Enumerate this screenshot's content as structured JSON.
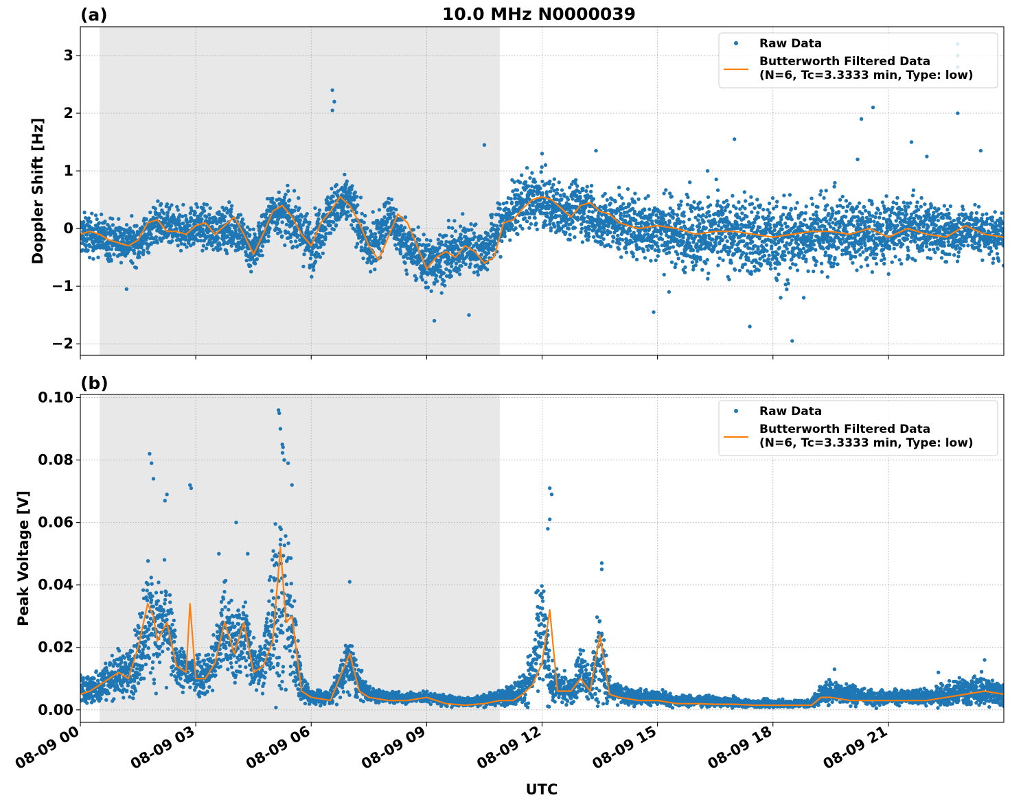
{
  "figure": {
    "suptitle": "10.0 MHz N0000039",
    "xlabel": "UTC",
    "xticks": [
      "08-09 00",
      "08-09 03",
      "08-09 06",
      "08-09 09",
      "08-09 12",
      "08-09 15",
      "08-09 18",
      "08-09 21"
    ]
  },
  "colors": {
    "raw": "#1f77b4",
    "filtered": "#ff7f0e",
    "shade": "#e8e8e8"
  },
  "chart_data": [
    {
      "type": "scatter",
      "panel_label": "(a)",
      "title": "10.0 MHz N0000039",
      "xlabel": "UTC",
      "ylabel": "Doppler Shift [Hz]",
      "x_unit": "hours since 08-09 00 UTC",
      "xlim": [
        0,
        24
      ],
      "ylim": [
        -2.2,
        3.5
      ],
      "yticks": [
        -2,
        -1,
        0,
        1,
        2,
        3
      ],
      "ytick_labels": [
        "−2",
        "−1",
        "0",
        "1",
        "2",
        "3"
      ],
      "grid": true,
      "legend_position": "top-right",
      "shaded_span_hours": [
        0.5,
        10.9
      ],
      "series": [
        {
          "name": "Raw Data",
          "style": "points",
          "x": [
            0,
            0.5,
            1,
            1.5,
            2,
            2.5,
            3,
            3.5,
            4,
            4.5,
            5,
            5.5,
            6,
            6.5,
            7,
            7.5,
            8,
            8.5,
            9,
            9.5,
            10,
            10.5,
            11,
            11.5,
            12,
            12.5,
            13,
            13.5,
            14,
            14.5,
            15,
            15.5,
            16,
            16.5,
            17,
            17.5,
            18,
            18.5,
            19,
            19.5,
            20,
            20.5,
            21,
            21.5,
            22,
            22.5,
            23,
            23.5,
            24
          ],
          "center": [
            -0.1,
            -0.15,
            -0.2,
            -0.25,
            0.1,
            -0.05,
            0.05,
            -0.05,
            0.05,
            -0.4,
            0.3,
            0.15,
            -0.3,
            0.3,
            0.5,
            -0.4,
            0.2,
            -0.3,
            -0.6,
            -0.5,
            -0.3,
            -0.4,
            0.1,
            0.5,
            0.45,
            0.3,
            0.4,
            0.1,
            0.1,
            0.0,
            0.0,
            -0.05,
            -0.1,
            -0.1,
            -0.1,
            -0.15,
            -0.2,
            -0.2,
            -0.05,
            -0.1,
            0.0,
            -0.1,
            -0.05,
            0.0,
            0.0,
            -0.1,
            0.0,
            -0.1,
            -0.15
          ],
          "spread": [
            0.3,
            0.3,
            0.3,
            0.3,
            0.3,
            0.3,
            0.3,
            0.3,
            0.35,
            0.35,
            0.3,
            0.35,
            0.4,
            0.35,
            0.35,
            0.35,
            0.35,
            0.35,
            0.4,
            0.4,
            0.35,
            0.35,
            0.4,
            0.4,
            0.4,
            0.4,
            0.4,
            0.4,
            0.45,
            0.45,
            0.5,
            0.5,
            0.55,
            0.55,
            0.55,
            0.6,
            0.6,
            0.6,
            0.5,
            0.55,
            0.5,
            0.5,
            0.5,
            0.45,
            0.4,
            0.4,
            0.35,
            0.35,
            0.35
          ],
          "outliers": [
            [
              1.2,
              -1.05
            ],
            [
              6.55,
              2.4
            ],
            [
              6.55,
              2.05
            ],
            [
              6.6,
              2.2
            ],
            [
              5.4,
              0.65
            ],
            [
              9.2,
              -1.6
            ],
            [
              10.1,
              -1.5
            ],
            [
              10.5,
              1.45
            ],
            [
              12.0,
              1.3
            ],
            [
              13.4,
              1.35
            ],
            [
              16.3,
              1.0
            ],
            [
              17.0,
              1.55
            ],
            [
              17.4,
              -1.7
            ],
            [
              18.5,
              -1.95
            ],
            [
              18.8,
              -1.2
            ],
            [
              20.3,
              1.9
            ],
            [
              20.6,
              2.1
            ],
            [
              21.6,
              1.5
            ],
            [
              22.0,
              1.25
            ],
            [
              22.8,
              3.2
            ],
            [
              22.8,
              3.0
            ],
            [
              22.8,
              2.0
            ],
            [
              22.8,
              2.8
            ],
            [
              23.4,
              1.35
            ],
            [
              14.9,
              -1.45
            ],
            [
              15.3,
              -1.1
            ],
            [
              20.2,
              1.2
            ],
            [
              18.2,
              -1.2
            ]
          ]
        },
        {
          "name": "Butterworth Filtered Data\n(N=6, Tc=3.3333 min, Type: low)",
          "style": "line",
          "x": [
            0,
            0.25,
            0.5,
            0.75,
            1,
            1.25,
            1.5,
            1.75,
            2,
            2.25,
            2.5,
            2.75,
            3,
            3.25,
            3.5,
            3.75,
            4,
            4.25,
            4.5,
            4.75,
            5,
            5.25,
            5.5,
            5.75,
            6,
            6.25,
            6.5,
            6.75,
            7,
            7.25,
            7.5,
            7.75,
            8,
            8.25,
            8.5,
            8.75,
            9,
            9.25,
            9.5,
            9.75,
            10,
            10.25,
            10.5,
            10.75,
            11,
            11.25,
            11.5,
            11.75,
            12,
            12.25,
            12.5,
            12.75,
            13,
            13.25,
            13.5,
            13.75,
            14,
            14.5,
            15,
            15.5,
            16,
            16.5,
            17,
            17.5,
            18,
            18.5,
            19,
            19.5,
            20,
            20.5,
            21,
            21.5,
            22,
            22.5,
            23,
            23.5,
            24
          ],
          "y": [
            -0.1,
            -0.05,
            -0.1,
            -0.2,
            -0.25,
            -0.3,
            -0.2,
            0.1,
            0.15,
            -0.05,
            -0.05,
            -0.1,
            0.05,
            0.1,
            -0.1,
            0.05,
            0.2,
            -0.1,
            -0.45,
            -0.1,
            0.3,
            0.4,
            0.2,
            -0.1,
            -0.3,
            0.1,
            0.3,
            0.55,
            0.4,
            0.1,
            -0.3,
            -0.55,
            -0.15,
            0.25,
            0.1,
            -0.3,
            -0.7,
            -0.5,
            -0.4,
            -0.5,
            -0.3,
            -0.4,
            -0.6,
            -0.5,
            0.1,
            0.15,
            0.35,
            0.5,
            0.55,
            0.5,
            0.35,
            0.2,
            0.4,
            0.45,
            0.3,
            0.25,
            0.1,
            0.0,
            0.05,
            0.0,
            -0.1,
            -0.05,
            -0.05,
            -0.1,
            -0.15,
            -0.1,
            -0.05,
            -0.05,
            -0.1,
            0.0,
            -0.15,
            0.0,
            -0.1,
            -0.15,
            0.05,
            -0.1,
            -0.15
          ]
        }
      ]
    },
    {
      "type": "scatter",
      "panel_label": "(b)",
      "xlabel": "UTC",
      "ylabel": "Peak Voltage [V]",
      "x_unit": "hours since 08-09 00 UTC",
      "xlim": [
        0,
        24
      ],
      "ylim": [
        -0.004,
        0.101
      ],
      "yticks": [
        0.0,
        0.02,
        0.04,
        0.06,
        0.08,
        0.1
      ],
      "ytick_labels": [
        "0.00",
        "0.02",
        "0.04",
        "0.06",
        "0.08",
        "0.10"
      ],
      "grid": true,
      "legend_position": "top-right",
      "shaded_span_hours": [
        0.5,
        10.9
      ],
      "series": [
        {
          "name": "Raw Data",
          "style": "points",
          "x": [
            0,
            0.25,
            0.5,
            0.75,
            1,
            1.25,
            1.5,
            1.75,
            2,
            2.25,
            2.5,
            2.75,
            3,
            3.25,
            3.5,
            3.75,
            4,
            4.25,
            4.5,
            4.75,
            5,
            5.25,
            5.5,
            5.75,
            6,
            6.5,
            7,
            7.25,
            7.5,
            8,
            8.5,
            9,
            9.5,
            10,
            10.5,
            10.9,
            11.25,
            11.5,
            11.75,
            12,
            12.25,
            12.5,
            12.75,
            13,
            13.25,
            13.5,
            13.75,
            14,
            14.5,
            15,
            15.5,
            16,
            16.5,
            17,
            17.5,
            18,
            18.5,
            19,
            19.25,
            19.5,
            20,
            20.5,
            21,
            21.5,
            22,
            22.5,
            23,
            23.5,
            24
          ],
          "center": [
            0.007,
            0.006,
            0.008,
            0.01,
            0.012,
            0.011,
            0.018,
            0.03,
            0.025,
            0.028,
            0.015,
            0.012,
            0.012,
            0.011,
            0.016,
            0.028,
            0.02,
            0.025,
            0.015,
            0.015,
            0.03,
            0.038,
            0.025,
            0.008,
            0.004,
            0.004,
            0.015,
            0.008,
            0.005,
            0.004,
            0.004,
            0.004,
            0.003,
            0.0025,
            0.003,
            0.004,
            0.005,
            0.007,
            0.012,
            0.025,
            0.008,
            0.007,
            0.006,
            0.012,
            0.008,
            0.018,
            0.006,
            0.005,
            0.004,
            0.004,
            0.003,
            0.003,
            0.0025,
            0.0025,
            0.002,
            0.002,
            0.002,
            0.002,
            0.005,
            0.006,
            0.005,
            0.004,
            0.004,
            0.004,
            0.004,
            0.005,
            0.006,
            0.006,
            0.005
          ],
          "spread": [
            0.004,
            0.004,
            0.005,
            0.005,
            0.006,
            0.006,
            0.01,
            0.016,
            0.012,
            0.014,
            0.006,
            0.006,
            0.006,
            0.006,
            0.008,
            0.012,
            0.01,
            0.012,
            0.007,
            0.007,
            0.02,
            0.03,
            0.018,
            0.004,
            0.002,
            0.002,
            0.008,
            0.004,
            0.002,
            0.0015,
            0.0015,
            0.0015,
            0.0015,
            0.0012,
            0.0015,
            0.002,
            0.003,
            0.004,
            0.008,
            0.018,
            0.005,
            0.004,
            0.003,
            0.008,
            0.005,
            0.014,
            0.003,
            0.003,
            0.002,
            0.002,
            0.0015,
            0.0015,
            0.0012,
            0.0012,
            0.001,
            0.001,
            0.001,
            0.001,
            0.003,
            0.003,
            0.003,
            0.002,
            0.002,
            0.002,
            0.002,
            0.003,
            0.004,
            0.004,
            0.003
          ],
          "outliers": [
            [
              1.8,
              0.082
            ],
            [
              1.85,
              0.079
            ],
            [
              1.9,
              0.074
            ],
            [
              2.25,
              0.069
            ],
            [
              2.2,
              0.067
            ],
            [
              2.85,
              0.072
            ],
            [
              2.88,
              0.071
            ],
            [
              3.6,
              0.05
            ],
            [
              4.05,
              0.06
            ],
            [
              4.35,
              0.05
            ],
            [
              5.15,
              0.096
            ],
            [
              5.17,
              0.095
            ],
            [
              5.2,
              0.09
            ],
            [
              5.25,
              0.085
            ],
            [
              5.3,
              0.08
            ],
            [
              5.4,
              0.079
            ],
            [
              5.5,
              0.072
            ],
            [
              7.0,
              0.041
            ],
            [
              12.2,
              0.071
            ],
            [
              12.25,
              0.069
            ],
            [
              12.2,
              0.061
            ],
            [
              12.15,
              0.058
            ],
            [
              13.55,
              0.047
            ],
            [
              13.55,
              0.045
            ],
            [
              19.6,
              0.013
            ],
            [
              22.3,
              0.012
            ],
            [
              23.5,
              0.016
            ]
          ]
        },
        {
          "name": "Butterworth Filtered Data\n(N=6, Tc=3.3333 min, Type: low)",
          "style": "line",
          "x": [
            0,
            0.25,
            0.5,
            0.75,
            1,
            1.25,
            1.5,
            1.75,
            1.9,
            2.0,
            2.25,
            2.5,
            2.75,
            2.85,
            3.0,
            3.25,
            3.5,
            3.75,
            4.0,
            4.25,
            4.5,
            4.75,
            5.0,
            5.2,
            5.35,
            5.5,
            5.75,
            6.0,
            6.5,
            7.0,
            7.25,
            7.5,
            8.0,
            8.5,
            9.0,
            9.5,
            10.0,
            10.5,
            10.9,
            11.25,
            11.5,
            11.75,
            12.0,
            12.2,
            12.4,
            12.75,
            13.0,
            13.25,
            13.5,
            13.75,
            14.0,
            14.5,
            15.0,
            15.5,
            16.0,
            16.5,
            17.0,
            17.5,
            18.0,
            18.5,
            19.0,
            19.25,
            19.5,
            20.0,
            20.5,
            21.0,
            21.5,
            22.0,
            22.5,
            23.0,
            23.5,
            24.0
          ],
          "y": [
            0.005,
            0.006,
            0.008,
            0.01,
            0.012,
            0.01,
            0.02,
            0.034,
            0.03,
            0.022,
            0.028,
            0.014,
            0.012,
            0.034,
            0.01,
            0.01,
            0.015,
            0.028,
            0.018,
            0.028,
            0.012,
            0.014,
            0.022,
            0.052,
            0.028,
            0.03,
            0.006,
            0.004,
            0.003,
            0.018,
            0.006,
            0.004,
            0.003,
            0.003,
            0.004,
            0.002,
            0.0015,
            0.002,
            0.003,
            0.003,
            0.005,
            0.008,
            0.015,
            0.032,
            0.006,
            0.006,
            0.01,
            0.006,
            0.024,
            0.005,
            0.004,
            0.003,
            0.003,
            0.002,
            0.002,
            0.0018,
            0.0018,
            0.0015,
            0.0015,
            0.0015,
            0.0015,
            0.004,
            0.004,
            0.003,
            0.003,
            0.003,
            0.003,
            0.003,
            0.004,
            0.005,
            0.006,
            0.005
          ]
        }
      ]
    }
  ]
}
